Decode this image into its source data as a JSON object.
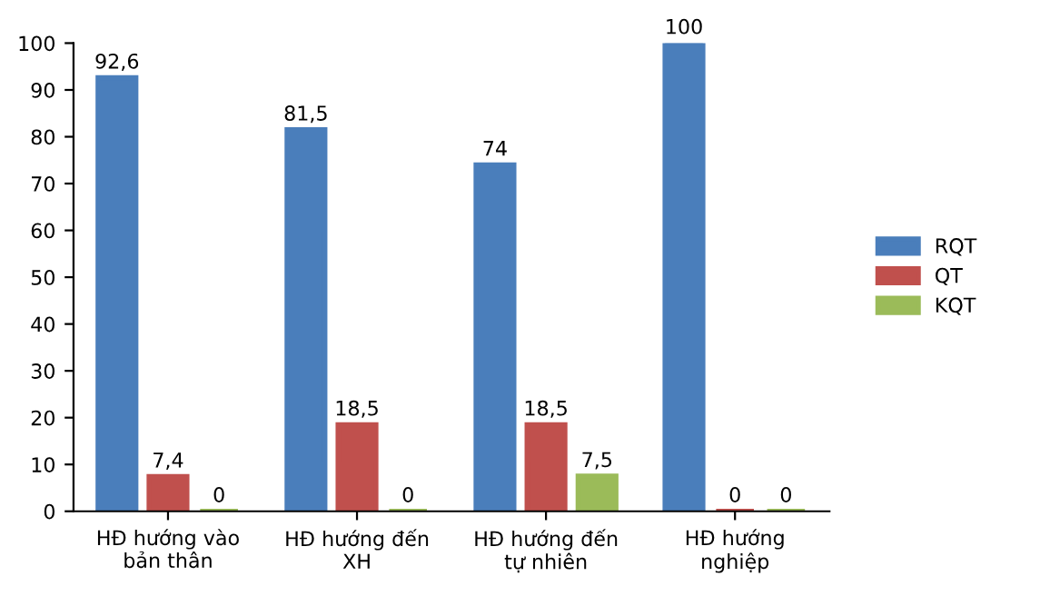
{
  "chart_data": {
    "type": "bar",
    "categories": [
      "HĐ hướng vào\nbản thân",
      "HĐ hướng đến\nXH",
      "HĐ hướng đến\ntự nhiên",
      "HĐ hướng\nnghiệp"
    ],
    "series": [
      {
        "name": "RQT",
        "color": "#4a7ebb",
        "values": [
          92.6,
          81.5,
          74,
          100
        ],
        "value_labels": [
          "92,6",
          "81,5",
          "74",
          "100"
        ]
      },
      {
        "name": "QT",
        "color": "#c0504d",
        "values": [
          7.4,
          18.5,
          18.5,
          0
        ],
        "value_labels": [
          "7,4",
          "18,5",
          "18,5",
          "0"
        ]
      },
      {
        "name": "KQT",
        "color": "#9bbb59",
        "values": [
          0,
          0,
          7.5,
          0
        ],
        "value_labels": [
          "0",
          "0",
          "7,5",
          "0"
        ]
      }
    ],
    "ylim": [
      0,
      100
    ],
    "yticks": [
      0,
      10,
      20,
      30,
      40,
      50,
      60,
      70,
      80,
      90,
      100
    ],
    "grid": false,
    "legend": "right"
  }
}
